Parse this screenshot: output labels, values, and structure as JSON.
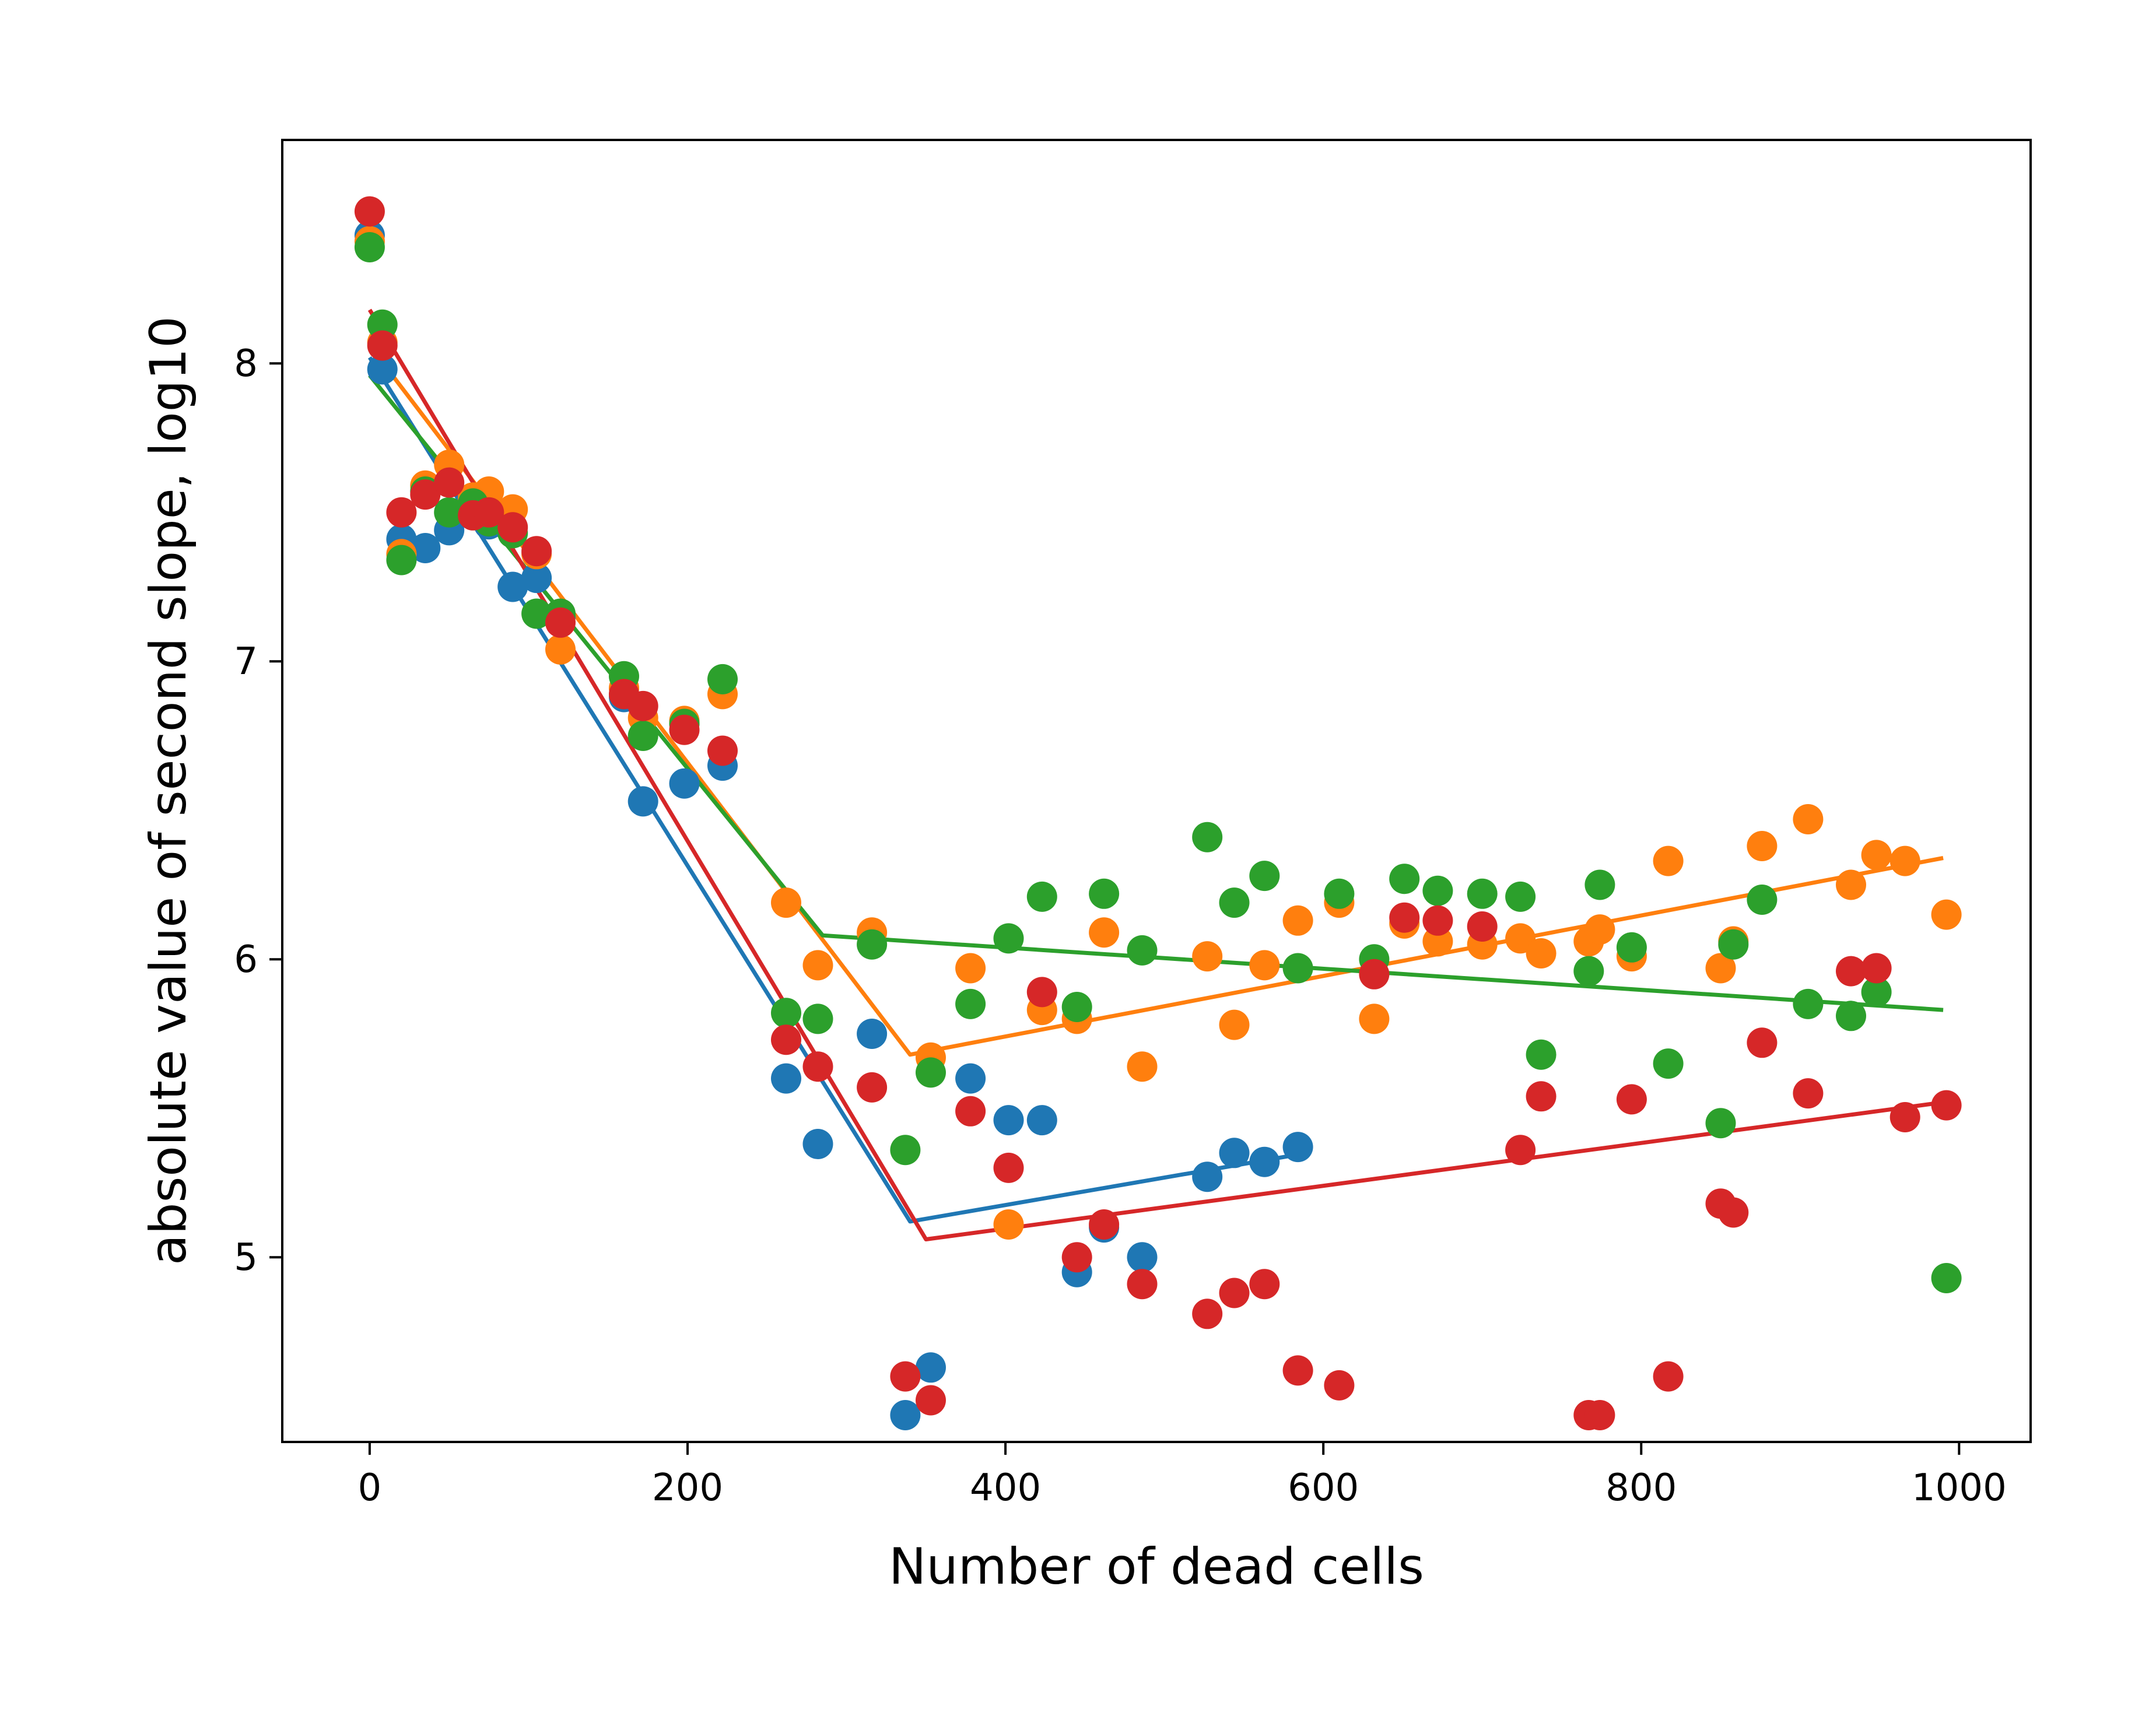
{
  "chart_data": {
    "type": "scatter",
    "title": "",
    "xlabel": "Number of dead cells",
    "ylabel": "absolute value of second slope, log10",
    "xlim": [
      -55,
      1045
    ],
    "ylim": [
      4.38,
      8.75
    ],
    "xticks": [
      0,
      200,
      400,
      600,
      800,
      1000
    ],
    "yticks": [
      5,
      6,
      7,
      8
    ],
    "grid": false,
    "legend": "none",
    "series": [
      {
        "color": "#1f77b4",
        "points": [
          [
            0,
            8.43
          ],
          [
            8,
            7.98
          ],
          [
            20,
            7.41
          ],
          [
            35,
            7.38
          ],
          [
            50,
            7.44
          ],
          [
            65,
            7.5
          ],
          [
            75,
            7.46
          ],
          [
            90,
            7.25
          ],
          [
            105,
            7.28
          ],
          [
            120,
            7.15
          ],
          [
            160,
            6.88
          ],
          [
            172,
            6.53
          ],
          [
            198,
            6.59
          ],
          [
            222,
            6.65
          ],
          [
            262,
            5.6
          ],
          [
            282,
            5.38
          ],
          [
            316,
            5.75
          ],
          [
            337,
            4.47
          ],
          [
            353,
            4.63
          ],
          [
            378,
            5.6
          ],
          [
            402,
            5.46
          ],
          [
            423,
            5.46
          ],
          [
            445,
            4.95
          ],
          [
            462,
            5.1
          ],
          [
            486,
            5.0
          ],
          [
            527,
            5.27
          ],
          [
            544,
            5.35
          ],
          [
            563,
            5.32
          ],
          [
            584,
            5.37
          ]
        ],
        "fit": [
          [
            0,
            8.02
          ],
          [
            340,
            5.12
          ],
          [
            590,
            5.35
          ]
        ]
      },
      {
        "color": "#ff7f0e",
        "points": [
          [
            0,
            8.41
          ],
          [
            8,
            8.07
          ],
          [
            20,
            7.36
          ],
          [
            35,
            7.59
          ],
          [
            50,
            7.66
          ],
          [
            65,
            7.55
          ],
          [
            75,
            7.57
          ],
          [
            90,
            7.51
          ],
          [
            105,
            7.36
          ],
          [
            120,
            7.04
          ],
          [
            160,
            6.91
          ],
          [
            172,
            6.81
          ],
          [
            198,
            6.8
          ],
          [
            222,
            6.89
          ],
          [
            262,
            6.19
          ],
          [
            282,
            5.98
          ],
          [
            316,
            6.09
          ],
          [
            353,
            5.67
          ],
          [
            378,
            5.97
          ],
          [
            402,
            5.11
          ],
          [
            423,
            5.83
          ],
          [
            445,
            5.8
          ],
          [
            462,
            6.09
          ],
          [
            486,
            5.64
          ],
          [
            527,
            6.01
          ],
          [
            544,
            5.78
          ],
          [
            563,
            5.98
          ],
          [
            584,
            6.13
          ],
          [
            610,
            6.19
          ],
          [
            632,
            5.8
          ],
          [
            651,
            6.12
          ],
          [
            672,
            6.06
          ],
          [
            700,
            6.05
          ],
          [
            724,
            6.07
          ],
          [
            737,
            6.02
          ],
          [
            767,
            6.06
          ],
          [
            774,
            6.1
          ],
          [
            794,
            6.01
          ],
          [
            817,
            6.33
          ],
          [
            850,
            5.97
          ],
          [
            858,
            6.06
          ],
          [
            876,
            6.38
          ],
          [
            905,
            6.47
          ],
          [
            932,
            6.25
          ],
          [
            948,
            6.35
          ],
          [
            966,
            6.33
          ],
          [
            992,
            6.15
          ]
        ],
        "fit": [
          [
            0,
            8.06
          ],
          [
            340,
            5.68
          ],
          [
            990,
            6.34
          ]
        ]
      },
      {
        "color": "#2ca02c",
        "points": [
          [
            0,
            8.39
          ],
          [
            8,
            8.13
          ],
          [
            20,
            7.34
          ],
          [
            35,
            7.57
          ],
          [
            50,
            7.5
          ],
          [
            65,
            7.53
          ],
          [
            75,
            7.47
          ],
          [
            90,
            7.43
          ],
          [
            105,
            7.16
          ],
          [
            120,
            7.16
          ],
          [
            160,
            6.95
          ],
          [
            172,
            6.75
          ],
          [
            198,
            6.79
          ],
          [
            222,
            6.94
          ],
          [
            262,
            5.82
          ],
          [
            282,
            5.8
          ],
          [
            316,
            6.05
          ],
          [
            337,
            5.36
          ],
          [
            353,
            5.62
          ],
          [
            378,
            5.85
          ],
          [
            402,
            6.07
          ],
          [
            423,
            6.21
          ],
          [
            445,
            5.84
          ],
          [
            462,
            6.22
          ],
          [
            486,
            6.03
          ],
          [
            527,
            6.41
          ],
          [
            544,
            6.19
          ],
          [
            563,
            6.28
          ],
          [
            584,
            5.97
          ],
          [
            610,
            6.22
          ],
          [
            632,
            6.0
          ],
          [
            651,
            6.27
          ],
          [
            672,
            6.23
          ],
          [
            700,
            6.22
          ],
          [
            724,
            6.21
          ],
          [
            737,
            5.68
          ],
          [
            767,
            5.96
          ],
          [
            774,
            6.25
          ],
          [
            794,
            6.04
          ],
          [
            817,
            5.65
          ],
          [
            850,
            5.45
          ],
          [
            858,
            6.05
          ],
          [
            876,
            6.2
          ],
          [
            905,
            5.85
          ],
          [
            932,
            5.81
          ],
          [
            948,
            5.89
          ],
          [
            992,
            4.93
          ]
        ],
        "fit": [
          [
            0,
            7.96
          ],
          [
            285,
            6.08
          ],
          [
            990,
            5.83
          ]
        ]
      },
      {
        "color": "#d62728",
        "points": [
          [
            0,
            8.51
          ],
          [
            8,
            8.06
          ],
          [
            20,
            7.5
          ],
          [
            35,
            7.56
          ],
          [
            50,
            7.6
          ],
          [
            65,
            7.49
          ],
          [
            75,
            7.5
          ],
          [
            90,
            7.45
          ],
          [
            105,
            7.37
          ],
          [
            120,
            7.13
          ],
          [
            160,
            6.89
          ],
          [
            172,
            6.85
          ],
          [
            198,
            6.77
          ],
          [
            222,
            6.7
          ],
          [
            262,
            5.73
          ],
          [
            282,
            5.64
          ],
          [
            316,
            5.57
          ],
          [
            337,
            4.6
          ],
          [
            353,
            4.52
          ],
          [
            378,
            5.49
          ],
          [
            402,
            5.3
          ],
          [
            423,
            5.89
          ],
          [
            445,
            5.0
          ],
          [
            462,
            5.11
          ],
          [
            486,
            4.91
          ],
          [
            527,
            4.81
          ],
          [
            544,
            4.88
          ],
          [
            563,
            4.91
          ],
          [
            584,
            4.62
          ],
          [
            610,
            4.57
          ],
          [
            632,
            5.95
          ],
          [
            651,
            6.14
          ],
          [
            672,
            6.13
          ],
          [
            700,
            6.11
          ],
          [
            724,
            5.36
          ],
          [
            737,
            5.54
          ],
          [
            767,
            4.47
          ],
          [
            774,
            4.47
          ],
          [
            794,
            5.53
          ],
          [
            817,
            4.6
          ],
          [
            850,
            5.18
          ],
          [
            858,
            5.15
          ],
          [
            876,
            5.72
          ],
          [
            905,
            5.55
          ],
          [
            932,
            5.96
          ],
          [
            948,
            5.97
          ],
          [
            966,
            5.47
          ],
          [
            992,
            5.51
          ]
        ],
        "fit": [
          [
            0,
            8.18
          ],
          [
            350,
            5.06
          ],
          [
            990,
            5.52
          ]
        ]
      }
    ]
  }
}
